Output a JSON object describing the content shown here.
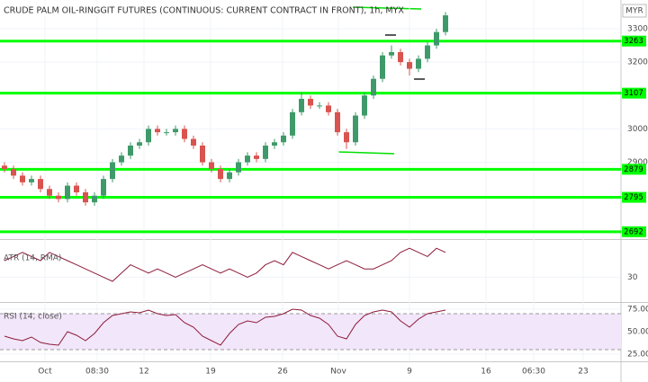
{
  "chart_data": [
    {
      "type": "candlestick",
      "title": "CRUDE PALM OIL-RINGGIT FUTURES (CONTINUOUS: CURRENT CONTRACT IN FRONT), 1h, MYX",
      "y_label": "MYR",
      "up_color": "#3f9a6a",
      "down_color": "#d9534f",
      "grid": true,
      "ylim": [
        2670,
        3386
      ],
      "yticks": [
        2900,
        3000,
        3200,
        3300
      ],
      "xlim": [
        -0.5,
        68.5
      ],
      "xticks": [
        {
          "value": 4.5,
          "label": "Oct"
        },
        {
          "value": 10.3,
          "label": "08:30"
        },
        {
          "value": 15.5,
          "label": "12"
        },
        {
          "value": 22.9,
          "label": "19"
        },
        {
          "value": 30.9,
          "label": "26"
        },
        {
          "value": 37.1,
          "label": "Nov"
        },
        {
          "value": 45,
          "label": "9"
        },
        {
          "value": 53.5,
          "label": "16"
        },
        {
          "value": 58.8,
          "label": "06:30"
        },
        {
          "value": 64.3,
          "label": "23"
        }
      ],
      "levels": [
        3263,
        3107,
        2879,
        2795,
        2692
      ],
      "level_color": "#00ff00",
      "open": [
        2890,
        2880,
        2860,
        2840,
        2850,
        2820,
        2800,
        2790,
        2830,
        2810,
        2780,
        2800,
        2850,
        2900,
        2920,
        2950,
        2960,
        3000,
        2990,
        2990,
        3000,
        2970,
        2950,
        2900,
        2880,
        2850,
        2870,
        2900,
        2920,
        2910,
        2950,
        2960,
        2980,
        3050,
        3090,
        3070,
        3070,
        3050,
        2990,
        2960,
        3040,
        3100,
        3150,
        3220,
        3230,
        3200,
        3180,
        3210,
        3250,
        3290
      ],
      "high": [
        2900,
        2890,
        2870,
        2860,
        2860,
        2830,
        2810,
        2840,
        2840,
        2820,
        2810,
        2860,
        2910,
        2930,
        2960,
        2970,
        3010,
        3010,
        3000,
        3010,
        3010,
        2980,
        2960,
        2910,
        2890,
        2880,
        2910,
        2930,
        2930,
        2960,
        2970,
        2990,
        3060,
        3110,
        3100,
        3080,
        3080,
        3060,
        3000,
        3050,
        3110,
        3160,
        3230,
        3250,
        3240,
        3210,
        3220,
        3260,
        3300,
        3350
      ],
      "low": [
        2870,
        2850,
        2830,
        2830,
        2810,
        2790,
        2780,
        2780,
        2800,
        2770,
        2770,
        2790,
        2840,
        2890,
        2910,
        2940,
        2950,
        2980,
        2980,
        2980,
        2960,
        2940,
        2890,
        2870,
        2840,
        2840,
        2860,
        2890,
        2900,
        2900,
        2940,
        2950,
        2970,
        3040,
        3060,
        3060,
        3040,
        2980,
        2940,
        2950,
        3030,
        3090,
        3140,
        3210,
        3190,
        3160,
        3170,
        3200,
        3240,
        3280
      ],
      "close": [
        2880,
        2860,
        2840,
        2850,
        2820,
        2800,
        2790,
        2830,
        2810,
        2780,
        2800,
        2850,
        2900,
        2920,
        2950,
        2960,
        3000,
        2990,
        2990,
        3000,
        2970,
        2950,
        2900,
        2880,
        2850,
        2870,
        2900,
        2920,
        2910,
        2950,
        2960,
        2980,
        3050,
        3090,
        3070,
        3070,
        3050,
        2990,
        2960,
        3040,
        3100,
        3150,
        3220,
        3230,
        3200,
        3180,
        3210,
        3250,
        3290,
        3340
      ]
    },
    {
      "type": "line",
      "title": "ATR (14, RMA)",
      "color": "#8e1b3a",
      "ylim": [
        24,
        39
      ],
      "yticks": [
        30
      ],
      "values": [
        34,
        35,
        36,
        35,
        34,
        36,
        35,
        34,
        33,
        32,
        31,
        30,
        29,
        31,
        33,
        32,
        31,
        32,
        31,
        30,
        31,
        32,
        33,
        32,
        31,
        32,
        31,
        30,
        31,
        33,
        34,
        33,
        36,
        35,
        34,
        33,
        32,
        33,
        34,
        33,
        32,
        32,
        33,
        34,
        36,
        37,
        36,
        35,
        37,
        36
      ]
    },
    {
      "type": "line",
      "title": "RSI (14, close)",
      "color": "#8e1b3a",
      "band": [
        30,
        70
      ],
      "band_color": "#f2e6fa",
      "ylim": [
        17,
        82
      ],
      "yticks": [
        {
          "value": 75,
          "label": "75.00"
        },
        {
          "value": 50,
          "label": "50.00"
        },
        {
          "value": 25,
          "label": "25.00"
        }
      ],
      "values": [
        45,
        42,
        40,
        44,
        38,
        36,
        35,
        50,
        46,
        40,
        48,
        60,
        68,
        70,
        72,
        71,
        74,
        70,
        68,
        69,
        60,
        55,
        45,
        40,
        35,
        48,
        58,
        62,
        60,
        66,
        67,
        70,
        75,
        74,
        68,
        65,
        58,
        45,
        42,
        58,
        68,
        72,
        74,
        72,
        62,
        55,
        64,
        70,
        72,
        74
      ]
    }
  ]
}
